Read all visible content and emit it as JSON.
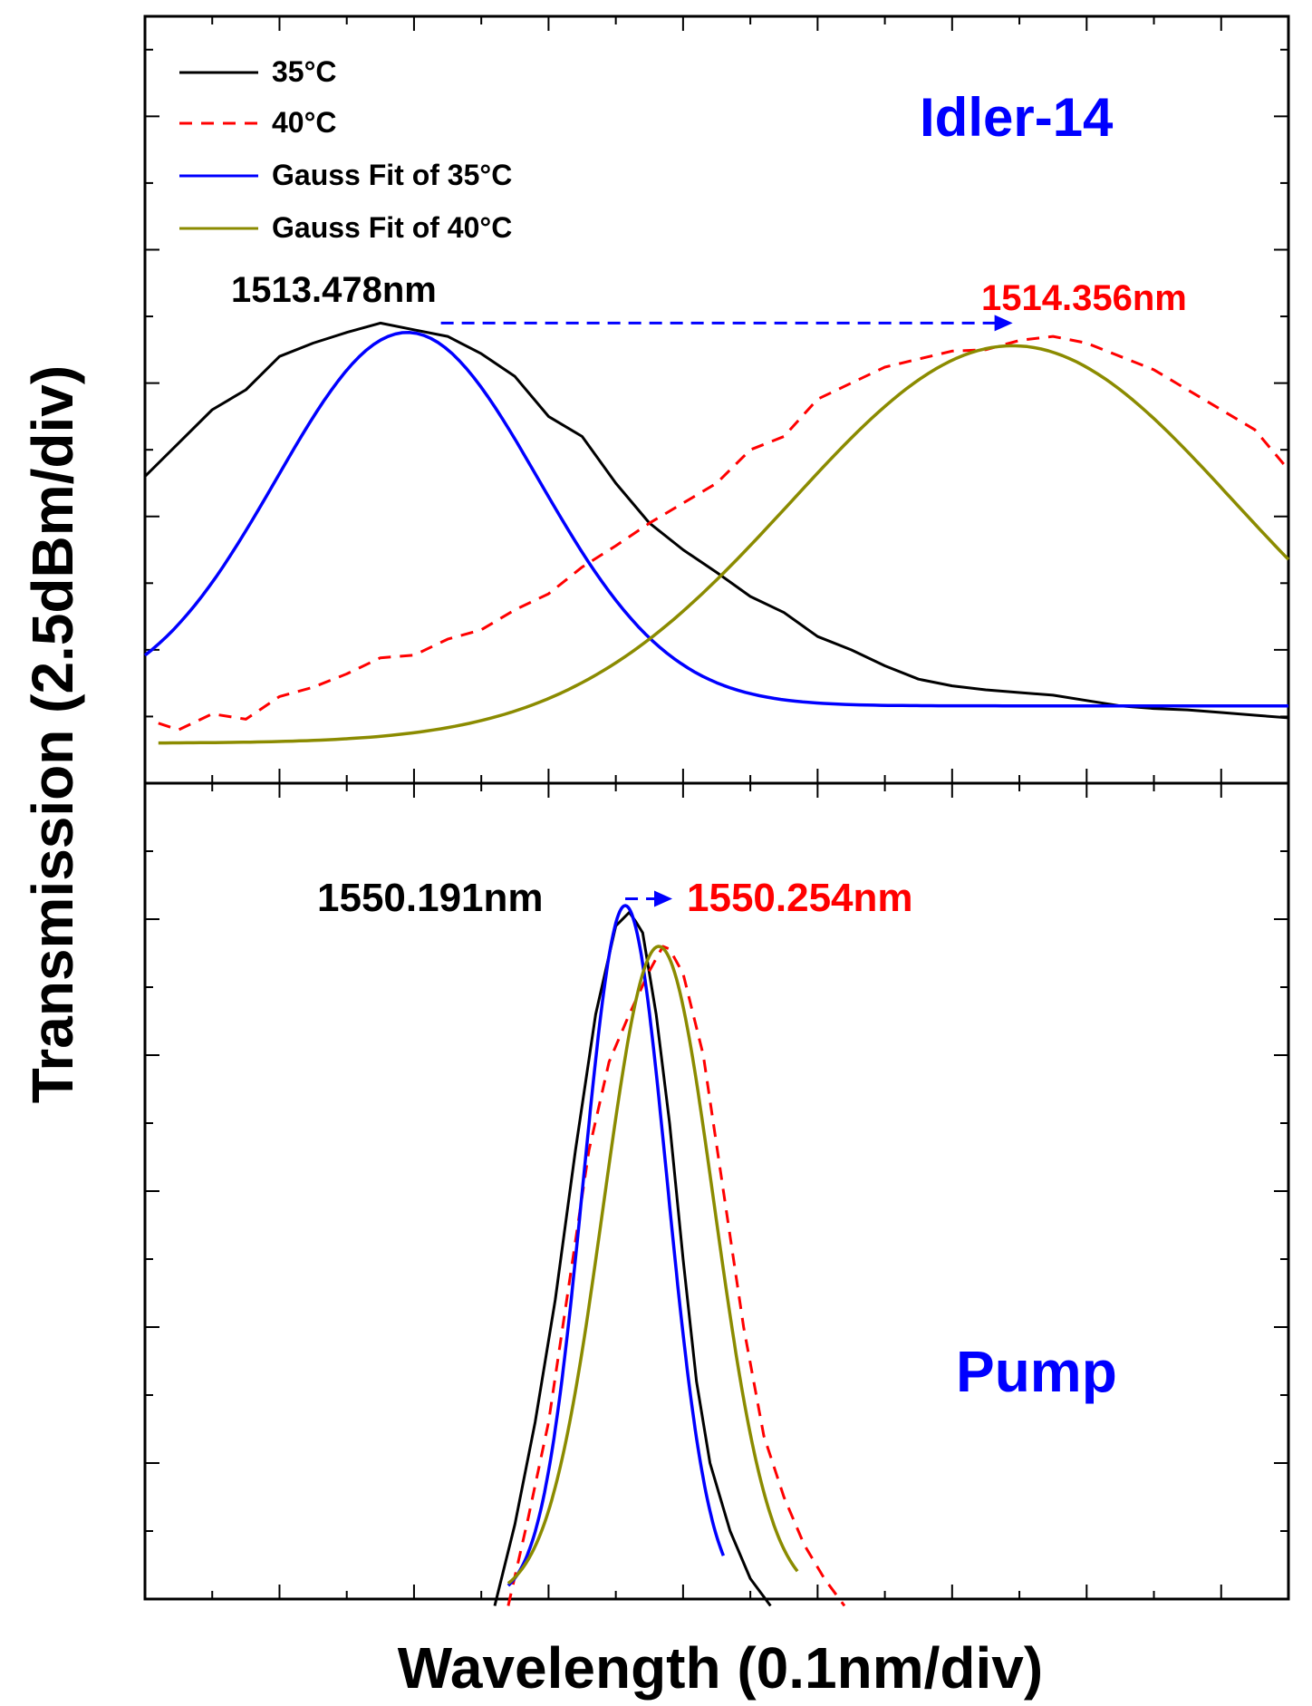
{
  "chart_data": [
    {
      "panel": "top",
      "type": "line",
      "title": "Idler-14",
      "xlabel": "Wavelength (0.1nm/div)",
      "ylabel": "Transmission (2.5dBm/div)",
      "xlim": [
        0,
        8.5
      ],
      "ylim": [
        0,
        5.75
      ],
      "legend": {
        "position": "top-left",
        "entries": [
          "35°C",
          "40°C",
          "Gauss Fit of 35°C",
          "Gauss Fit of 40°C"
        ]
      },
      "series": [
        {
          "name": "35°C",
          "x": [
            0.0,
            0.25,
            0.5,
            0.75,
            1.0,
            1.25,
            1.5,
            1.75,
            2.0,
            2.25,
            2.5,
            2.75,
            3.0,
            3.25,
            3.5,
            3.75,
            4.0,
            4.25,
            4.5,
            4.75,
            5.0,
            5.25,
            5.5,
            5.75,
            6.0,
            6.25,
            6.5,
            6.75,
            7.0,
            7.25,
            7.5,
            7.75,
            8.0,
            8.25,
            8.5
          ],
          "values": [
            2.3,
            2.55,
            2.8,
            2.95,
            3.2,
            3.3,
            3.38,
            3.45,
            3.4,
            3.35,
            3.22,
            3.05,
            2.75,
            2.6,
            2.25,
            1.95,
            1.75,
            1.58,
            1.4,
            1.28,
            1.1,
            1.0,
            0.88,
            0.78,
            0.73,
            0.7,
            0.68,
            0.66,
            0.62,
            0.58,
            0.56,
            0.55,
            0.53,
            0.51,
            0.49
          ]
        },
        {
          "name": "40°C",
          "x": [
            0.1,
            0.25,
            0.5,
            0.75,
            1.0,
            1.25,
            1.5,
            1.75,
            2.0,
            2.25,
            2.5,
            2.75,
            3.0,
            3.25,
            3.5,
            3.75,
            4.0,
            4.25,
            4.5,
            4.75,
            5.0,
            5.25,
            5.5,
            5.75,
            6.0,
            6.25,
            6.5,
            6.75,
            7.0,
            7.25,
            7.5,
            7.75,
            8.0,
            8.25,
            8.5
          ],
          "values": [
            0.45,
            0.4,
            0.52,
            0.48,
            0.65,
            0.72,
            0.82,
            0.94,
            0.96,
            1.08,
            1.15,
            1.3,
            1.42,
            1.62,
            1.78,
            1.95,
            2.1,
            2.25,
            2.5,
            2.6,
            2.88,
            3.0,
            3.12,
            3.18,
            3.24,
            3.25,
            3.32,
            3.35,
            3.3,
            3.2,
            3.1,
            2.95,
            2.8,
            2.65,
            2.35
          ]
        },
        {
          "name": "Gauss Fit of 35°C",
          "fit": "gauss",
          "y0": 0.58,
          "A": 2.8,
          "xc": 1.95,
          "w": 1.95,
          "xrange": [
            0.0,
            8.5
          ]
        },
        {
          "name": "Gauss Fit of 40°C",
          "fit": "gauss",
          "y0": 0.3,
          "A": 2.98,
          "xc": 6.45,
          "w": 3.3,
          "xrange": [
            0.1,
            8.5
          ]
        }
      ],
      "annotations": [
        {
          "text": "1513.478nm",
          "color": "#000000"
        },
        {
          "text": "1514.356nm",
          "color": "#ff0000"
        }
      ],
      "arrow": {
        "from_x": 2.2,
        "to_x": 6.45,
        "y": 3.45,
        "color": "#0000ff"
      }
    },
    {
      "panel": "bottom",
      "type": "line",
      "title": "Pump",
      "xlabel": "Wavelength (0.1nm/div)",
      "ylabel": "Transmission (2.5dBm/div)",
      "xlim": [
        0,
        8.5
      ],
      "ylim": [
        0,
        6
      ],
      "series": [
        {
          "name": "35°C",
          "x": [
            2.6,
            2.75,
            2.9,
            3.05,
            3.2,
            3.35,
            3.5,
            3.6,
            3.65,
            3.7,
            3.8,
            3.9,
            4.0,
            4.1,
            4.2,
            4.35,
            4.5,
            4.65
          ],
          "values": [
            -0.05,
            0.55,
            1.3,
            2.2,
            3.3,
            4.3,
            4.95,
            5.05,
            4.98,
            4.9,
            4.3,
            3.5,
            2.5,
            1.6,
            1.0,
            0.5,
            0.15,
            -0.05
          ]
        },
        {
          "name": "40°C",
          "x": [
            2.7,
            2.85,
            3.0,
            3.15,
            3.3,
            3.45,
            3.6,
            3.75,
            3.85,
            3.9,
            4.0,
            4.15,
            4.3,
            4.45,
            4.6,
            4.75,
            4.9,
            5.05,
            5.2
          ],
          "values": [
            -0.05,
            0.6,
            1.3,
            2.3,
            3.3,
            3.95,
            4.3,
            4.62,
            4.8,
            4.78,
            4.6,
            4.0,
            3.0,
            2.0,
            1.2,
            0.75,
            0.4,
            0.15,
            -0.05
          ]
        },
        {
          "name": "Gauss Fit of 35°C",
          "fit": "gauss",
          "y0": 0.0,
          "A": 5.1,
          "xc": 3.57,
          "w": 0.62,
          "xrange": [
            2.7,
            4.3
          ]
        },
        {
          "name": "Gauss Fit of 40°C",
          "fit": "gauss",
          "y0": 0.0,
          "A": 4.8,
          "xc": 3.82,
          "w": 0.82,
          "xrange": [
            2.7,
            4.85
          ]
        }
      ],
      "annotations": [
        {
          "text": "1550.191nm",
          "color": "#000000"
        },
        {
          "text": "1550.254nm",
          "color": "#ff0000"
        }
      ],
      "arrow": {
        "from_x": 3.57,
        "to_x": 3.92,
        "y": 5.15,
        "color": "#0000ff"
      }
    }
  ],
  "colors": {
    "c35": "#000000",
    "c40": "#ff0000",
    "fit35": "#0000ff",
    "fit40": "#8b8b00",
    "title": "#0000ff"
  }
}
